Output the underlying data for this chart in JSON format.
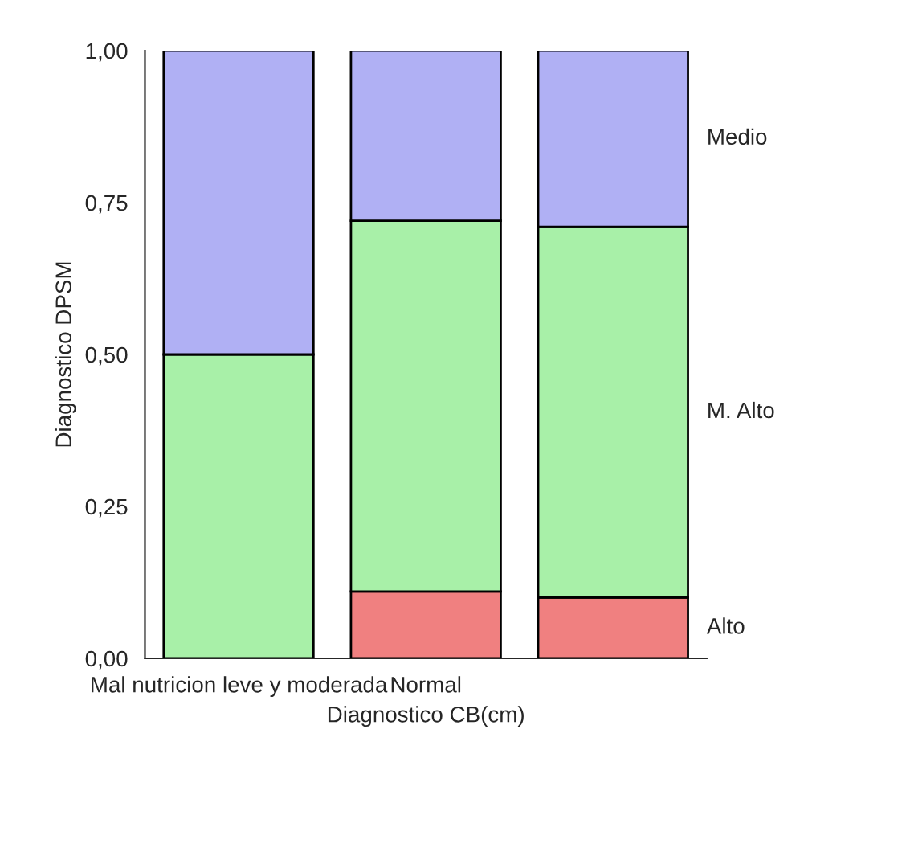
{
  "chart_data": {
    "type": "bar",
    "stacked": true,
    "xlabel": "Diagnostico CB(cm)",
    "ylabel": "Diagnostico DPSM",
    "categories": [
      "Mal nutricion leve y moderada",
      "Normal",
      null
    ],
    "series": [
      {
        "name": "Alto",
        "color": "#f08080",
        "values": [
          0.0,
          0.11,
          0.1
        ]
      },
      {
        "name": "M. Alto",
        "color": "#a8f0a8",
        "values": [
          0.5,
          0.61,
          0.61
        ]
      },
      {
        "name": "Medio",
        "color": "#b0b0f4",
        "values": [
          0.5,
          0.28,
          0.29
        ]
      }
    ],
    "ylim": [
      0,
      1
    ],
    "yticks": [
      {
        "value": 0,
        "label": "0,00"
      },
      {
        "value": 0.25,
        "label": "0,25"
      },
      {
        "value": 0.5,
        "label": "0,50"
      },
      {
        "value": 0.75,
        "label": "0,75"
      },
      {
        "value": 1,
        "label": "1,00"
      }
    ],
    "grid": false,
    "legend": false
  }
}
